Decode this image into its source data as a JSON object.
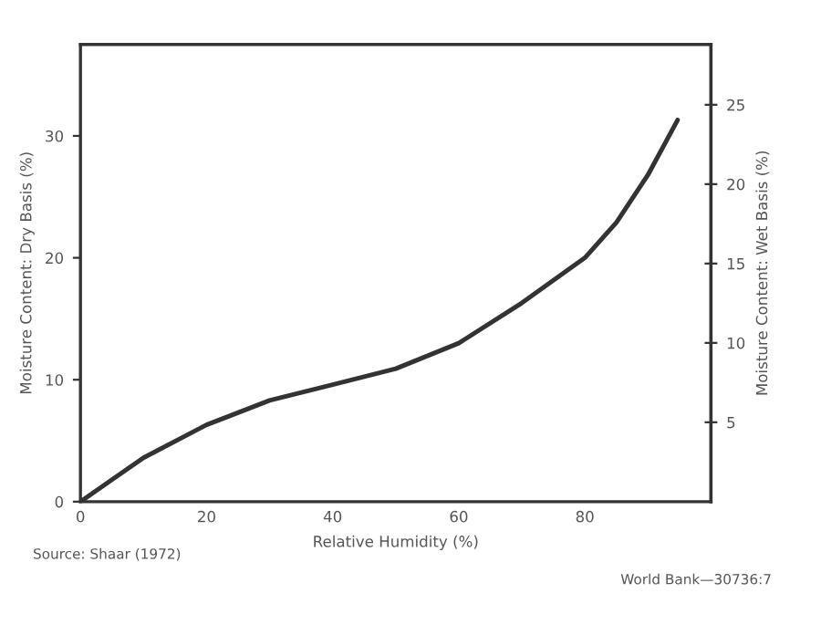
{
  "chart_data": {
    "type": "line",
    "xlabel": "Relative Humidity (%)",
    "ylabel": "Moisture Content: Dry Basis (%)",
    "y2label": "Moisture Content: Wet Basis (%)",
    "x": [
      0,
      5,
      10,
      20,
      30,
      40,
      50,
      60,
      70,
      80,
      85,
      90,
      94.7
    ],
    "series": [
      {
        "color": "#333333",
        "values": [
          0,
          1.8,
          3.6,
          6.3,
          8.3,
          9.6,
          10.9,
          13.0,
          16.3,
          20.0,
          22.9,
          26.8,
          31.3
        ]
      }
    ],
    "xlim": [
      0,
      100
    ],
    "xticks": [
      0,
      20,
      40,
      60,
      80
    ],
    "ylim": [
      0,
      37.5
    ],
    "yticks": [
      0,
      10,
      20,
      30
    ],
    "y2lim": [
      0,
      28.8
    ],
    "y2ticks": [
      5,
      10,
      15,
      20,
      25
    ],
    "grid": false,
    "legend": false,
    "marker": "none",
    "line_style": "solid",
    "annotations": [
      "Source: Shaar (1972)",
      "World Bank—30736:7"
    ]
  }
}
